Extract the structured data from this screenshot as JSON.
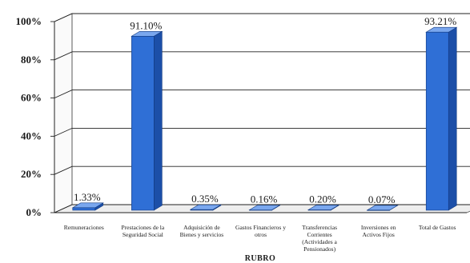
{
  "chart_data": {
    "type": "bar",
    "title": "",
    "xlabel": "RUBRO",
    "ylabel": "",
    "ylim": [
      0,
      100
    ],
    "yticks": [
      "0%",
      "20%",
      "40%",
      "60%",
      "80%",
      "100%"
    ],
    "categories": [
      [
        "Remuneraciones"
      ],
      [
        "Prestaciones de la",
        "Seguridad Social"
      ],
      [
        "Adquisición de",
        "Bienes y servicios"
      ],
      [
        "Gastos Financieros y",
        "otros"
      ],
      [
        "Transferencias",
        "Corrientes",
        "(Actividades a",
        "Pensionados)"
      ],
      [
        "Inversiones en",
        "Activos Fijos"
      ],
      [
        "Total de Gastos"
      ]
    ],
    "values": [
      1.33,
      91.1,
      0.35,
      0.16,
      0.2,
      0.07,
      93.21
    ],
    "value_labels": [
      "1.33%",
      "91.10%",
      "0.35%",
      "0.16%",
      "0.20%",
      "0.07%",
      "93.21%"
    ],
    "grid": true,
    "style": "3d",
    "bar_color": "#2f6fd6"
  }
}
